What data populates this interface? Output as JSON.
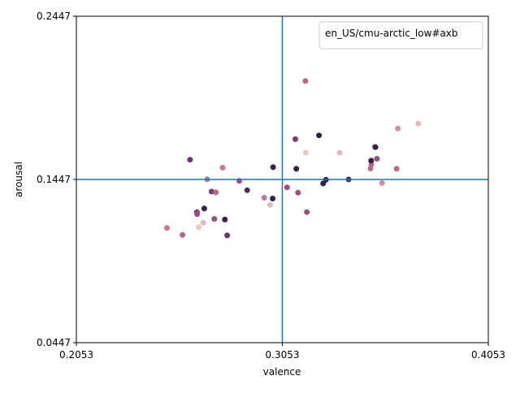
{
  "chart_data": {
    "type": "scatter",
    "title": "",
    "xlabel": "valence",
    "ylabel": "arousal",
    "xlim": [
      0.2053,
      0.4053
    ],
    "ylim": [
      0.0447,
      0.2447
    ],
    "xticks": [
      "0.2053",
      "0.3053",
      "0.4053"
    ],
    "yticks": [
      "0.0447",
      "0.1447",
      "0.2447"
    ],
    "grid": false,
    "legend": {
      "placement": "top-right",
      "entries": [
        "en_US/cmu-arctic_low#axb"
      ]
    },
    "reference_lines": {
      "x": 0.3053,
      "y": 0.1447,
      "color": "#1f77b4"
    },
    "points": [
      {
        "x": 0.3165,
        "y": 0.205,
        "color": "#b5688b"
      },
      {
        "x": 0.3231,
        "y": 0.1717,
        "color": "#36204a"
      },
      {
        "x": 0.3713,
        "y": 0.1789,
        "color": "#e6b8b8"
      },
      {
        "x": 0.3614,
        "y": 0.1759,
        "color": "#cf8f9f"
      },
      {
        "x": 0.35,
        "y": 0.1649,
        "color": "#e6b8b8"
      },
      {
        "x": 0.3505,
        "y": 0.1645,
        "color": "#36204a"
      },
      {
        "x": 0.3331,
        "y": 0.1611,
        "color": "#e6b8b8"
      },
      {
        "x": 0.3167,
        "y": 0.1611,
        "color": "#f0c8c0"
      },
      {
        "x": 0.3485,
        "y": 0.1539,
        "color": "#b5688b"
      },
      {
        "x": 0.3512,
        "y": 0.1574,
        "color": "#9a507f"
      },
      {
        "x": 0.3484,
        "y": 0.1562,
        "color": "#36204a"
      },
      {
        "x": 0.3481,
        "y": 0.1514,
        "color": "#b5688b"
      },
      {
        "x": 0.3608,
        "y": 0.1512,
        "color": "#b5688b"
      },
      {
        "x": 0.3116,
        "y": 0.1694,
        "color": "#7c3d75"
      },
      {
        "x": 0.2605,
        "y": 0.1568,
        "color": "#6b3470"
      },
      {
        "x": 0.2763,
        "y": 0.1519,
        "color": "#c07a92"
      },
      {
        "x": 0.2688,
        "y": 0.1448,
        "color": "#a07aa8"
      },
      {
        "x": 0.2844,
        "y": 0.1438,
        "color": "#9a507f"
      },
      {
        "x": 0.3008,
        "y": 0.1522,
        "color": "#36204a"
      },
      {
        "x": 0.3121,
        "y": 0.1512,
        "color": "#36204a"
      },
      {
        "x": 0.3265,
        "y": 0.1445,
        "color": "#36204a"
      },
      {
        "x": 0.3375,
        "y": 0.1447,
        "color": "#4a2d62"
      },
      {
        "x": 0.3251,
        "y": 0.1422,
        "color": "#36204a"
      },
      {
        "x": 0.3537,
        "y": 0.1425,
        "color": "#cf8f9f"
      },
      {
        "x": 0.2709,
        "y": 0.1373,
        "color": "#7c3d75"
      },
      {
        "x": 0.273,
        "y": 0.1368,
        "color": "#b5688b"
      },
      {
        "x": 0.2882,
        "y": 0.1381,
        "color": "#502b5e"
      },
      {
        "x": 0.3076,
        "y": 0.1398,
        "color": "#9a507f"
      },
      {
        "x": 0.3129,
        "y": 0.1366,
        "color": "#9a507f"
      },
      {
        "x": 0.2965,
        "y": 0.1335,
        "color": "#c07a92"
      },
      {
        "x": 0.2994,
        "y": 0.1292,
        "color": "#e6b8b8"
      },
      {
        "x": 0.3006,
        "y": 0.133,
        "color": "#36204a"
      },
      {
        "x": 0.2674,
        "y": 0.1269,
        "color": "#36204a"
      },
      {
        "x": 0.2638,
        "y": 0.1247,
        "color": "#7c3d75"
      },
      {
        "x": 0.2639,
        "y": 0.1234,
        "color": "#9a507f"
      },
      {
        "x": 0.2669,
        "y": 0.1182,
        "color": "#e6b8b8"
      },
      {
        "x": 0.2647,
        "y": 0.1155,
        "color": "#f0c8c0"
      },
      {
        "x": 0.2723,
        "y": 0.1205,
        "color": "#9a507f"
      },
      {
        "x": 0.2774,
        "y": 0.1201,
        "color": "#36204a"
      },
      {
        "x": 0.3172,
        "y": 0.1247,
        "color": "#9a507f"
      },
      {
        "x": 0.2493,
        "y": 0.115,
        "color": "#c07a92"
      },
      {
        "x": 0.2568,
        "y": 0.1107,
        "color": "#b5688b"
      },
      {
        "x": 0.2785,
        "y": 0.1104,
        "color": "#6b3470"
      }
    ]
  }
}
